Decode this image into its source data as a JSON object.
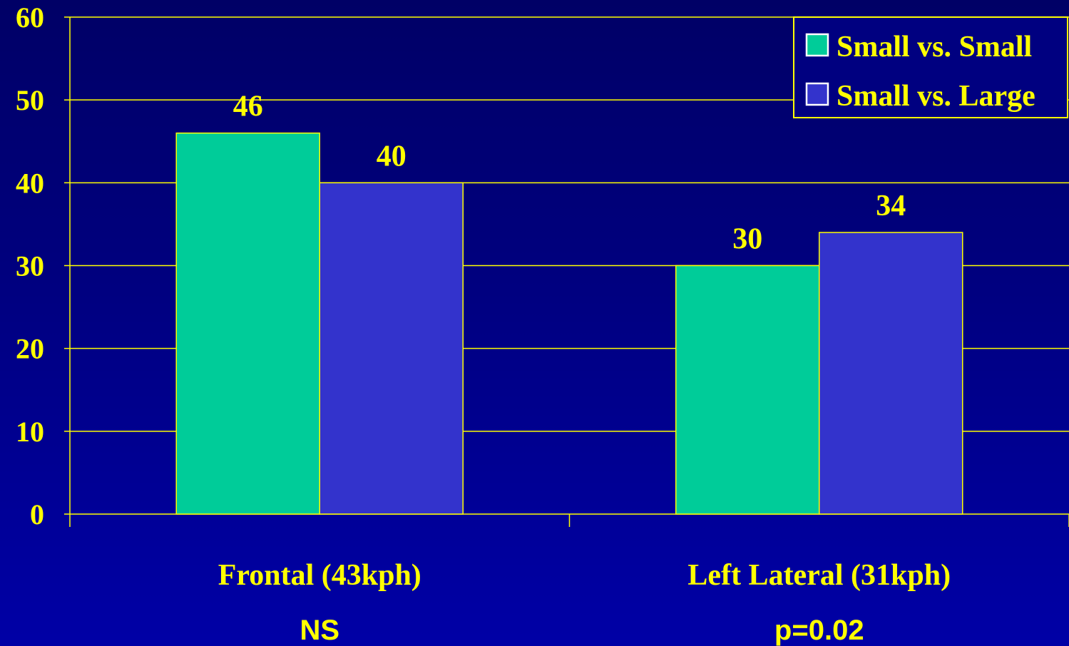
{
  "chart_data": {
    "type": "bar",
    "categories": [
      "Frontal (43kph)",
      "Left Lateral (31kph)"
    ],
    "series": [
      {
        "name": "Small vs. Small",
        "values": [
          46,
          30
        ],
        "color": "#00cc99"
      },
      {
        "name": "Small vs. Large",
        "values": [
          40,
          34
        ],
        "color": "#3333cc"
      }
    ],
    "ylim": [
      0,
      60
    ],
    "yticks": [
      0,
      10,
      20,
      30,
      40,
      50,
      60
    ],
    "significance": [
      "NS",
      "p=0.02"
    ],
    "grid": true,
    "legend_position": "top-right",
    "title": "",
    "xlabel": "",
    "ylabel": ""
  },
  "colors": {
    "text": "#ffff00",
    "axis": "#ffff00",
    "background": "#000080"
  }
}
